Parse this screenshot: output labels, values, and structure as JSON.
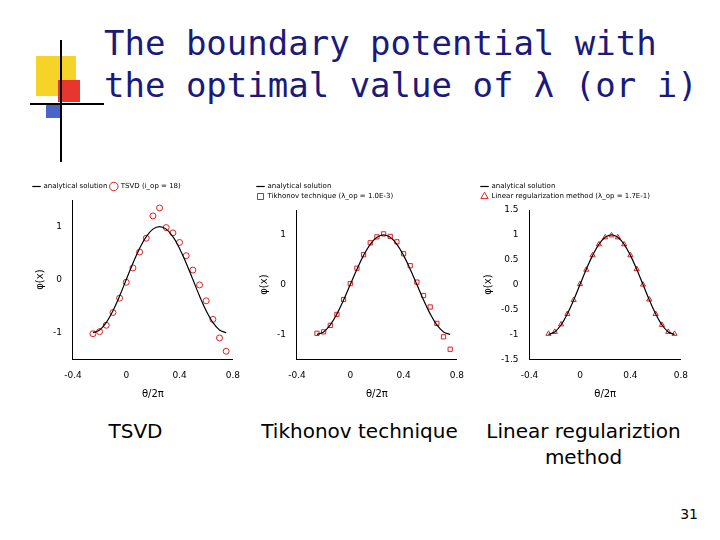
{
  "slide": {
    "title": "The boundary potential with the optimal value of λ (or i)",
    "page_number": "31"
  },
  "chart_data": [
    {
      "type": "line",
      "caption": "TSVD",
      "x_label": "θ/2π",
      "y_label": "φ(x)",
      "x": [
        -0.25,
        -0.2,
        -0.15,
        -0.1,
        -0.05,
        0,
        0.05,
        0.1,
        0.15,
        0.2,
        0.25,
        0.3,
        0.35,
        0.4,
        0.45,
        0.5,
        0.55,
        0.6,
        0.65,
        0.7,
        0.75
      ],
      "series": [
        {
          "name": "analytical solution",
          "type": "line",
          "color": "#000000",
          "line_style": "solid",
          "values": [
            -1,
            -0.951,
            -0.809,
            -0.588,
            -0.309,
            0,
            0.309,
            0.588,
            0.809,
            0.951,
            1,
            0.951,
            0.809,
            0.588,
            0.309,
            0,
            -0.309,
            -0.588,
            -0.809,
            -0.951,
            -1
          ]
        },
        {
          "name": "TSVD (i_op = 18)",
          "type": "scatter",
          "color": "#e02020",
          "marker": "circle",
          "values": [
            -1.02,
            -0.98,
            -0.86,
            -0.62,
            -0.35,
            -0.05,
            0.22,
            0.52,
            0.78,
            1.2,
            1.35,
            0.98,
            0.88,
            0.7,
            0.45,
            0.18,
            -0.1,
            -0.4,
            -0.75,
            -1.1,
            -1.35
          ]
        }
      ],
      "xlim": [
        -0.4,
        0.8
      ],
      "xticks": [
        -0.4,
        0,
        0.4,
        0.8
      ],
      "ylim": [
        -1.5,
        1.5
      ],
      "yticks": [
        -1,
        0,
        1
      ],
      "grid": false,
      "legend": "top"
    },
    {
      "type": "line",
      "caption": "Tikhonov technique",
      "x_label": "θ/2π",
      "y_label": "φ(x)",
      "x": [
        -0.25,
        -0.2,
        -0.15,
        -0.1,
        -0.05,
        0,
        0.05,
        0.1,
        0.15,
        0.2,
        0.25,
        0.3,
        0.35,
        0.4,
        0.45,
        0.5,
        0.55,
        0.6,
        0.65,
        0.7,
        0.75
      ],
      "series": [
        {
          "name": "analytical solution",
          "type": "line",
          "color": "#000000",
          "line_style": "solid",
          "values": [
            -1,
            -0.951,
            -0.809,
            -0.588,
            -0.309,
            0,
            0.309,
            0.588,
            0.809,
            0.951,
            1,
            0.951,
            0.809,
            0.588,
            0.309,
            0,
            -0.309,
            -0.588,
            -0.809,
            -0.951,
            -1
          ]
        },
        {
          "name": "Tikhonov technique (λ_op = 1.0E-3)",
          "type": "scatter",
          "color": "#e02020",
          "marker": "square",
          "values": [
            -0.98,
            -0.95,
            -0.82,
            -0.6,
            -0.3,
            0.02,
            0.33,
            0.6,
            0.84,
            0.96,
            1.02,
            0.97,
            0.86,
            0.62,
            0.38,
            0.05,
            -0.22,
            -0.45,
            -0.78,
            -1.05,
            -1.3
          ]
        }
      ],
      "xlim": [
        -0.4,
        0.8
      ],
      "xticks": [
        -0.4,
        0,
        0.4,
        0.8
      ],
      "ylim": [
        -1.5,
        1.5
      ],
      "yticks": [
        -1,
        0,
        1
      ],
      "grid": false,
      "legend": "top"
    },
    {
      "type": "line",
      "caption": "Linear regulariztion method",
      "x_label": "θ/2π",
      "y_label": "φ(x)",
      "x": [
        -0.25,
        -0.2,
        -0.15,
        -0.1,
        -0.05,
        0,
        0.05,
        0.1,
        0.15,
        0.2,
        0.25,
        0.3,
        0.35,
        0.4,
        0.45,
        0.5,
        0.55,
        0.6,
        0.65,
        0.7,
        0.75
      ],
      "series": [
        {
          "name": "analytical solution",
          "type": "line",
          "color": "#000000",
          "line_style": "solid",
          "values": [
            -1,
            -0.951,
            -0.809,
            -0.588,
            -0.309,
            0,
            0.309,
            0.588,
            0.809,
            0.951,
            1,
            0.951,
            0.809,
            0.588,
            0.309,
            0,
            -0.309,
            -0.588,
            -0.809,
            -0.951,
            -1
          ]
        },
        {
          "name": "Linear regularization method (λ_op = 1.7E-1)",
          "type": "scatter",
          "color": "#e02020",
          "marker": "triangle",
          "values": [
            -0.99,
            -0.95,
            -0.8,
            -0.59,
            -0.31,
            0.01,
            0.3,
            0.59,
            0.81,
            0.95,
            0.99,
            0.95,
            0.81,
            0.59,
            0.31,
            0,
            -0.3,
            -0.59,
            -0.81,
            -0.95,
            -0.99
          ]
        }
      ],
      "xlim": [
        -0.4,
        0.8
      ],
      "xticks": [
        -0.4,
        0,
        0.4,
        0.8
      ],
      "ylim": [
        -1.5,
        1.5
      ],
      "yticks": [
        -1.5,
        -1,
        -0.5,
        0,
        0.5,
        1,
        1.5
      ],
      "grid": false,
      "legend": "top"
    }
  ]
}
